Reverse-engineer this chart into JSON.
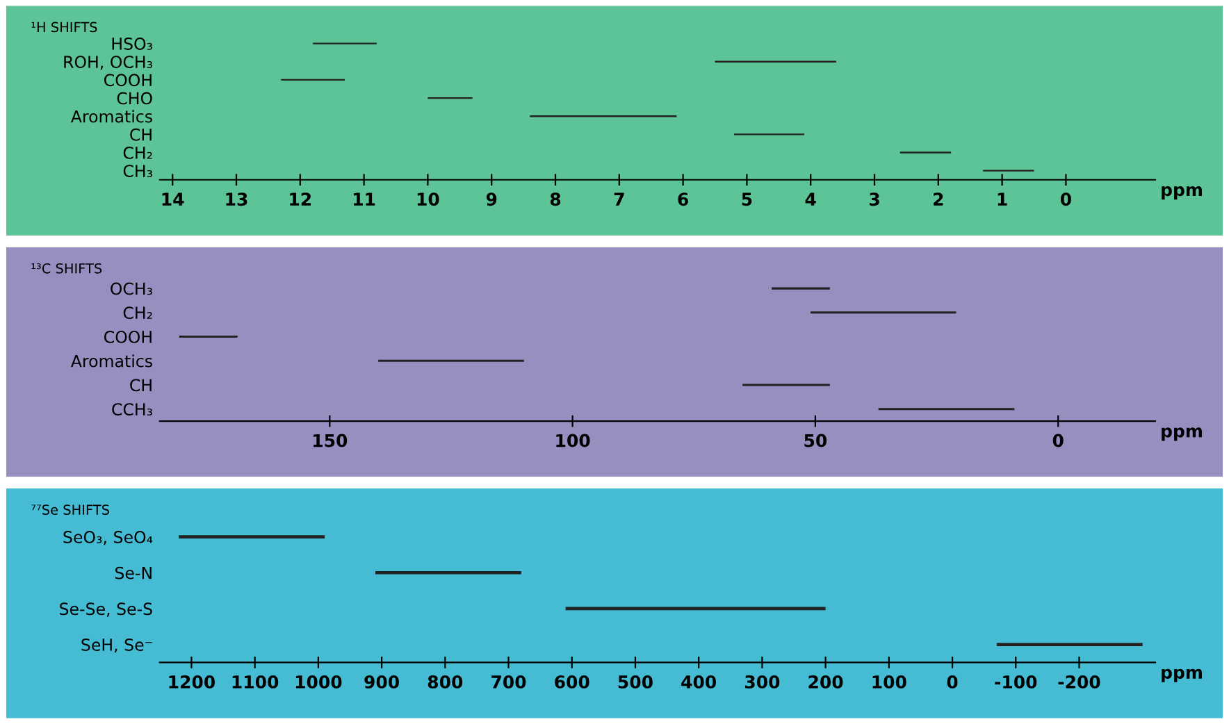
{
  "chart_data": [
    {
      "type": "bar",
      "orientation": "horizontal",
      "title": "¹H SHIFTS",
      "xlabel": "ppm",
      "tick_labels": "x",
      "grid": false,
      "legend": false,
      "categories": [
        "HSO₃",
        "ROH, OCH₃",
        "COOH",
        "CHO",
        "Aromatics",
        "CH",
        "CH₂",
        "CH₃"
      ],
      "base": [
        10.8,
        3.6,
        11.3,
        9.3,
        6.1,
        4.1,
        1.8,
        0.5
      ],
      "values": [
        1.0,
        1.9,
        1.0,
        0.7,
        2.3,
        1.1,
        0.8,
        0.8
      ],
      "color": "#222222",
      "xlim": [
        14.2,
        -1.4
      ],
      "xticks": [
        14,
        13,
        12,
        11,
        10,
        9,
        8,
        7,
        6,
        5,
        4,
        3,
        2,
        1,
        0
      ]
    },
    {
      "type": "bar",
      "orientation": "horizontal",
      "title": "¹³C SHIFTS",
      "xlabel": "ppm",
      "tick_labels": "x",
      "grid": false,
      "legend": false,
      "categories": [
        "OCH₃",
        "CH₂",
        "COOH",
        "Aromatics",
        "CH",
        "CCH₃"
      ],
      "base": [
        47,
        21,
        169,
        110,
        47,
        9
      ],
      "values": [
        12,
        30,
        12,
        30,
        18,
        28
      ],
      "color": "#222222",
      "xlim": [
        185,
        -20
      ],
      "xticks": [
        150,
        100,
        50,
        0
      ]
    },
    {
      "type": "bar",
      "orientation": "horizontal",
      "title": "⁷⁷Se SHIFTS",
      "xlabel": "ppm",
      "tick_labels": "x",
      "grid": false,
      "legend": false,
      "categories": [
        "SeO₃, SeO₄",
        "Se-N",
        "Se-Se, Se-S",
        "SeH, Se⁻"
      ],
      "base": [
        990,
        680,
        200,
        -300
      ],
      "values": [
        230,
        230,
        410,
        230
      ],
      "color": "#222222",
      "xlim": [
        1250,
        -320
      ],
      "xticks": [
        1200,
        1100,
        1000,
        900,
        800,
        700,
        600,
        500,
        400,
        300,
        200,
        100,
        0,
        -100,
        -200
      ]
    }
  ]
}
